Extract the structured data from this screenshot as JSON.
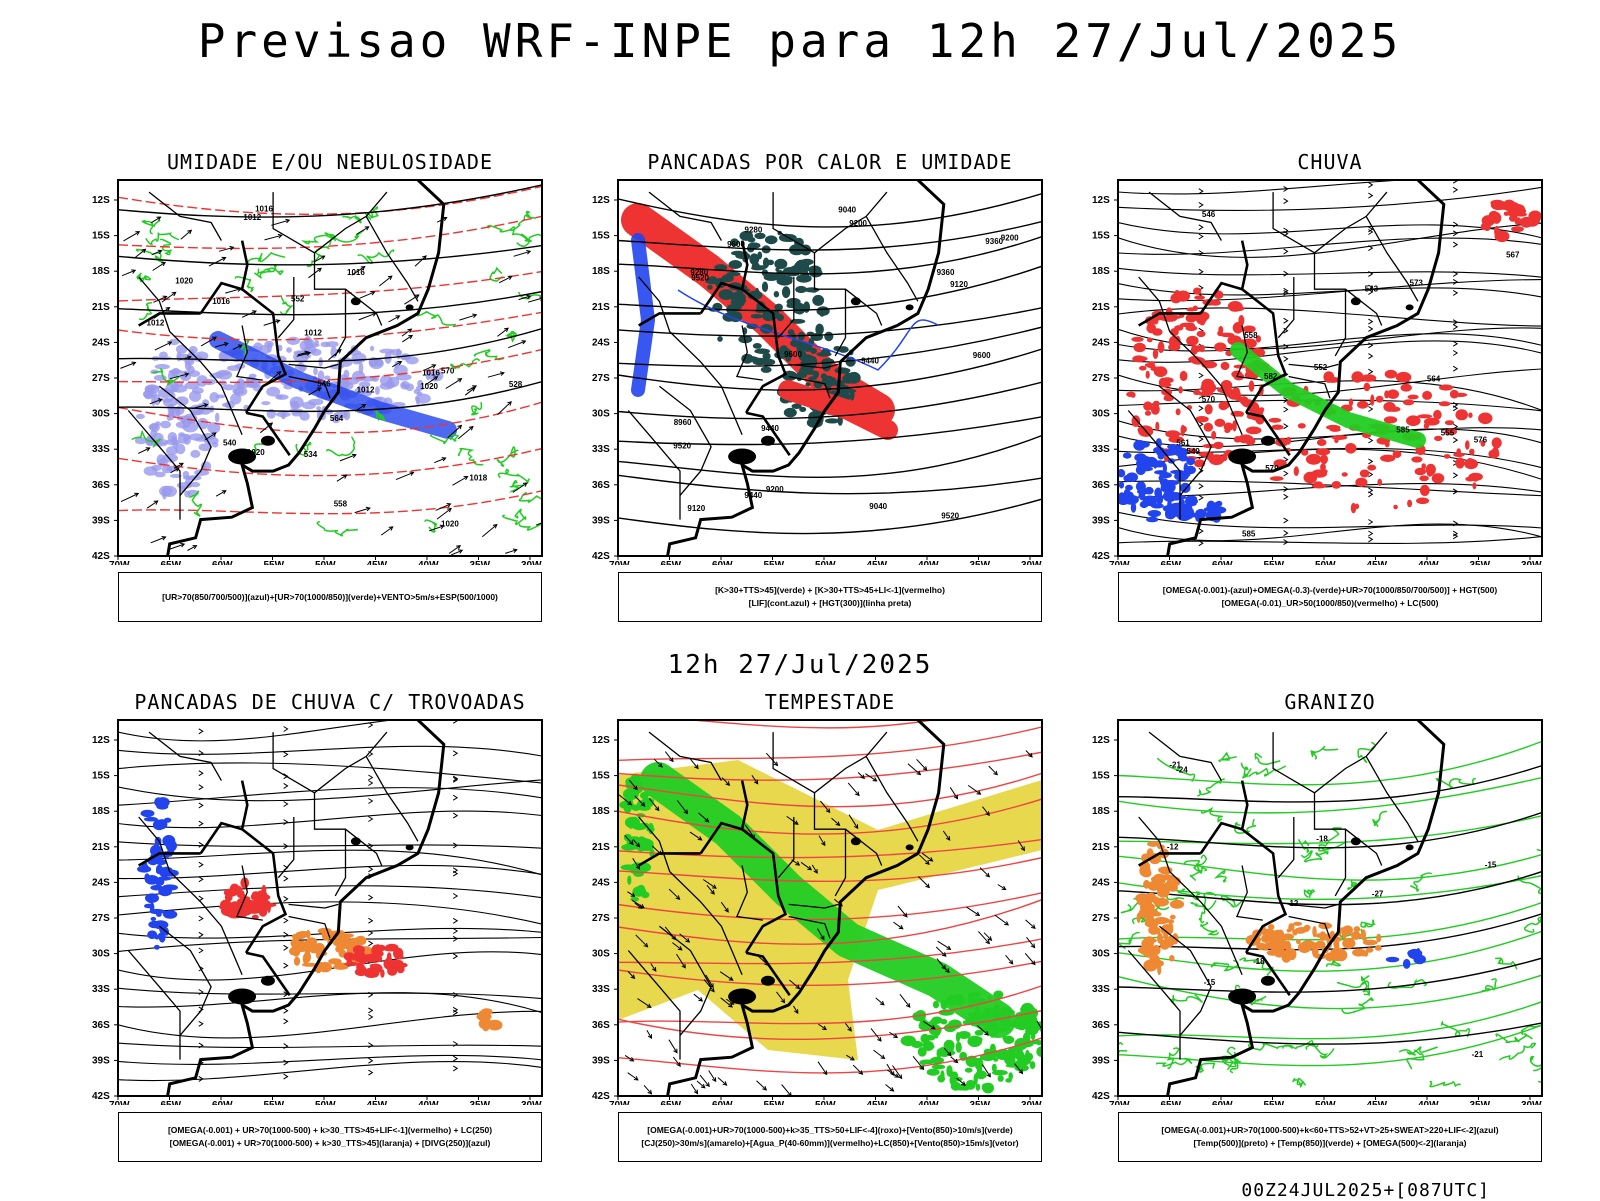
{
  "header": {
    "title": "Previsao WRF-INPE  para 12h 27/Jul/2025",
    "subtitle": "12h 27/Jul/2025",
    "footer": "00Z24JUL2025+[087UTC]"
  },
  "axes": {
    "lat_ticks": [
      "12S",
      "15S",
      "18S",
      "21S",
      "24S",
      "27S",
      "30S",
      "33S",
      "36S",
      "39S",
      "42S"
    ],
    "lon_ticks": [
      "70W",
      "65W",
      "60W",
      "55W",
      "50W",
      "45W",
      "40W",
      "35W",
      "30W"
    ]
  },
  "colors": {
    "green": "#22cc22",
    "red": "#ee3333",
    "blue": "#2244ee",
    "light_blue": "#9999ee",
    "dark_teal": "#1f4a4a",
    "yellow": "#e5d43a",
    "orange": "#ee8833",
    "black": "#000000"
  },
  "panels": [
    {
      "id": "umidade",
      "title": "UMIDADE E/OU NEBULOSIDADE",
      "legend": [
        "[UR>70(850/700/500)](azul)+[UR>70(1000/850)](verde)+VENTO>5m/s+ESP(500/1000)"
      ],
      "contour_labels": [
        "1016",
        "1020",
        "1012",
        "1012",
        "1020",
        "1016",
        "1012",
        "1012",
        "1018",
        "1020",
        "1016",
        "1016",
        "1020",
        "570",
        "564",
        "558",
        "552",
        "546",
        "540",
        "534",
        "528",
        "576"
      ]
    },
    {
      "id": "pancadas-calor",
      "title": "PANCADAS POR CALOR E UMIDADE",
      "legend": [
        "[K>30+TTS>45](verde) + [K>30+TTS>45+LI<-1](vermelho)",
        "[LIF](cont.azul) + [HGT(300)](linha preta)"
      ],
      "contour_labels": [
        "9600",
        "9600",
        "9600",
        "9520",
        "9520",
        "9520",
        "9440",
        "9440",
        "9440",
        "9360",
        "9360",
        "9280",
        "9280",
        "9200",
        "9200",
        "9200",
        "9120",
        "9120",
        "9040",
        "9040",
        "8960"
      ]
    },
    {
      "id": "chuva",
      "title": "CHUVA",
      "legend": [
        "[OMEGA(-0.001)-(azul)+OMEGA(-0.3)-(verde)+UR>70(1000/850/700/500)] + HGT(500)",
        "[OMEGA(-0.01)_UR>50(1000/850)(vermelho) + LC(500)"
      ],
      "contour_labels": [
        "585",
        "585",
        "582",
        "579",
        "576",
        "573",
        "570",
        "567",
        "564",
        "561",
        "558",
        "555",
        "552",
        "549",
        "546",
        "543"
      ]
    },
    {
      "id": "trovoadas",
      "title": "PANCADAS DE CHUVA C/ TROVOADAS",
      "legend": [
        "[OMEGA(-0.001) + UR>70(1000-500) + k>30_TTS>45+LIF<-1](vermelho) + LC(250)",
        "[OMEGA(-0.001) + UR>70(1000-500) + k>30_TTS>45](laranja) + [DIVG(250)](azul)"
      ],
      "contour_labels": []
    },
    {
      "id": "tempestade",
      "title": "TEMPESTADE",
      "legend": [
        "[OMEGA(-0.001)+UR>70(1000-500)+k>35_TTS>50+LIF<-4](roxo)+[Vento(850)>10m/s](verde)",
        "[CJ(250)>30m/s](amarelo)+[Agua_P(40-60mm)](vermelho)+LC(850)+[Vento(850)>15m/s](vetor)"
      ],
      "contour_labels": []
    },
    {
      "id": "granizo",
      "title": "GRANIZO",
      "legend": [
        "[OMEGA(-0.001)+UR>70(1000-500)+k<60+TTS>52+VT>25+SWEAT>220+LIF<-2](azul)",
        "[Temp(500)](preto) + [Temp(850)](verde) + [OMEGA(500)<-2](laranja)"
      ],
      "contour_labels": [
        "-12",
        "-12",
        "-15",
        "-15",
        "-18",
        "-18",
        "-21",
        "-21",
        "-24",
        "-27"
      ]
    }
  ]
}
